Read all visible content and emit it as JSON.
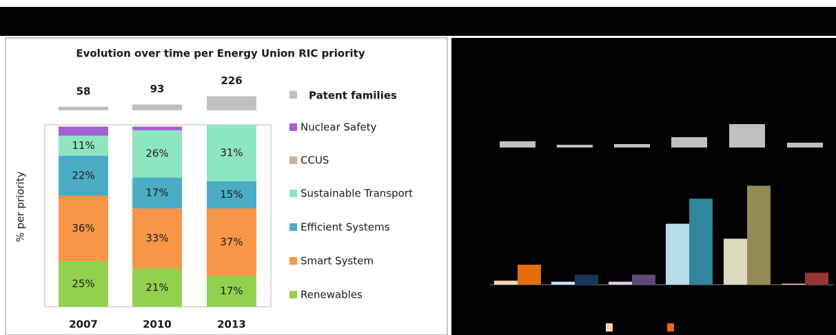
{
  "chart_data": [
    {
      "type": "bar",
      "stacked": true,
      "title": "Evolution over time per Energy Union RIC priority",
      "ylabel": "% per priority",
      "categories": [
        "2007",
        "2010",
        "2013"
      ],
      "ylim": [
        0,
        100
      ],
      "totals": {
        "name": "Patent families",
        "color": "#c0c0c0",
        "values": [
          58,
          93,
          226
        ]
      },
      "series": [
        {
          "name": "Renewables",
          "color": "#92d050",
          "values": [
            25,
            21,
            17
          ],
          "value_labels": [
            "25%",
            "21%",
            "17%"
          ]
        },
        {
          "name": "Smart System",
          "color": "#f79646",
          "values": [
            36,
            33,
            37
          ],
          "value_labels": [
            "36%",
            "33%",
            "37%"
          ]
        },
        {
          "name": "Efficient Systems",
          "color": "#4bacc6",
          "values": [
            22,
            17,
            15
          ],
          "value_labels": [
            "22%",
            "17%",
            "15%"
          ]
        },
        {
          "name": "Sustainable Transport",
          "color": "#8ee5c3",
          "values": [
            11,
            26,
            31
          ],
          "value_labels": [
            "11%",
            "26%",
            "31%"
          ]
        },
        {
          "name": "CCUS",
          "color": "#c4b896",
          "values": [
            0,
            0,
            0
          ],
          "value_labels": [
            null,
            null,
            null
          ]
        },
        {
          "name": "Nuclear Safety",
          "color": "#a35fd4",
          "values": [
            5,
            2,
            0
          ],
          "value_labels": [
            null,
            null,
            null
          ]
        }
      ]
    },
    {
      "type": "bar",
      "ylim": [
        0,
        100
      ],
      "totals": {
        "color": "#c0c0c0",
        "values": [
          9,
          4,
          5,
          15,
          34,
          7
        ]
      },
      "series": [
        {
          "colors": [
            "#fcd5b5",
            "#c6e0f0",
            "#d9cde6",
            "#b7dde8",
            "#ddd9c3",
            "#f2c4c4"
          ],
          "values": [
            4,
            3,
            3,
            61,
            46,
            1
          ]
        },
        {
          "colors": [
            "#e46c0a",
            "#17375e",
            "#604a7b",
            "#31859c",
            "#948a54",
            "#953735"
          ],
          "values": [
            20,
            10,
            10,
            86,
            99,
            12
          ]
        }
      ]
    }
  ]
}
